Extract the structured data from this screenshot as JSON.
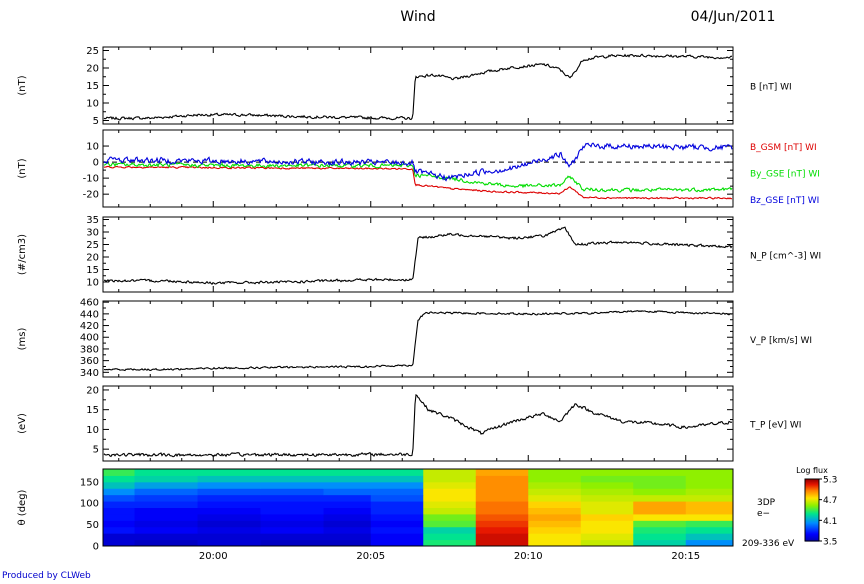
{
  "header": {
    "mission": "Wind",
    "date": "04/Jun/2011"
  },
  "footer": {
    "credit": "Produced by CLWeb"
  },
  "x_axis": {
    "type": "time",
    "range": [
      "19:56:30",
      "20:16:30"
    ],
    "ticks": [
      {
        "value": "20:00",
        "label": "20:00"
      },
      {
        "value": "20:05",
        "label": "20:05"
      },
      {
        "value": "20:10",
        "label": "20:10"
      },
      {
        "value": "20:15",
        "label": "20:15"
      }
    ]
  },
  "chart_data": [
    {
      "type": "line",
      "ylabel": "(nT)",
      "ylim": [
        4,
        26
      ],
      "yticks": [
        5,
        10,
        15,
        20,
        25
      ],
      "series": [
        {
          "name": "B [nT] WI",
          "color": "#000000",
          "noise": 0.35,
          "points": [
            [
              "19:56:30",
              5.6
            ],
            [
              "19:58:00",
              5.7
            ],
            [
              "19:59:30",
              6.6
            ],
            [
              "20:01:00",
              6.6
            ],
            [
              "20:02:30",
              6.2
            ],
            [
              "20:04:00",
              5.9
            ],
            [
              "20:05:30",
              5.7
            ],
            [
              "20:06:20",
              5.6
            ],
            [
              "20:06:25",
              17.5
            ],
            [
              "20:07:00",
              18.0
            ],
            [
              "20:07:40",
              16.8
            ],
            [
              "20:08:30",
              18.6
            ],
            [
              "20:09:30",
              20.2
            ],
            [
              "20:10:30",
              21.0
            ],
            [
              "20:11:00",
              19.6
            ],
            [
              "20:11:20",
              17.0
            ],
            [
              "20:11:45",
              22.5
            ],
            [
              "20:12:30",
              23.4
            ],
            [
              "20:13:30",
              23.6
            ],
            [
              "20:14:30",
              23.4
            ],
            [
              "20:15:30",
              23.2
            ],
            [
              "20:16:30",
              23.0
            ]
          ]
        }
      ]
    },
    {
      "type": "line",
      "ylabel": "(nT)",
      "ylim": [
        -28,
        20
      ],
      "yticks": [
        -20,
        -10,
        0,
        10
      ],
      "zero_line": "dashed",
      "series": [
        {
          "name": "B_GSM [nT] WI",
          "color": "#dd0000",
          "noise": 0.45,
          "points": [
            [
              "19:56:30",
              -3.0
            ],
            [
              "20:01:00",
              -3.6
            ],
            [
              "20:06:20",
              -4.2
            ],
            [
              "20:06:25",
              -14.0
            ],
            [
              "20:07:30",
              -16.5
            ],
            [
              "20:09:00",
              -18.5
            ],
            [
              "20:11:00",
              -19.5
            ],
            [
              "20:11:20",
              -15.5
            ],
            [
              "20:11:45",
              -22.0
            ],
            [
              "20:13:30",
              -22.5
            ],
            [
              "20:16:30",
              -22.5
            ]
          ]
        },
        {
          "name": "By_GSE [nT] WI",
          "color": "#00dd00",
          "noise": 1.0,
          "points": [
            [
              "19:56:30",
              -1.5
            ],
            [
              "20:01:00",
              -2.2
            ],
            [
              "20:06:20",
              -2.2
            ],
            [
              "20:06:25",
              -8.0
            ],
            [
              "20:07:30",
              -10.0
            ],
            [
              "20:08:30",
              -13.0
            ],
            [
              "20:09:30",
              -15.0
            ],
            [
              "20:11:00",
              -14.5
            ],
            [
              "20:11:20",
              -9.0
            ],
            [
              "20:11:45",
              -17.0
            ],
            [
              "20:13:30",
              -17.5
            ],
            [
              "20:16:30",
              -17.0
            ]
          ]
        },
        {
          "name": "Bz_GSE [nT] WI",
          "color": "#0000dd",
          "noise": 1.6,
          "points": [
            [
              "19:56:30",
              1.5
            ],
            [
              "20:01:00",
              0.5
            ],
            [
              "20:06:20",
              -0.5
            ],
            [
              "20:06:25",
              -6.0
            ],
            [
              "20:07:30",
              -10.0
            ],
            [
              "20:08:30",
              -6.0
            ],
            [
              "20:09:30",
              -4.0
            ],
            [
              "20:10:30",
              2.0
            ],
            [
              "20:11:00",
              5.0
            ],
            [
              "20:11:20",
              -3.0
            ],
            [
              "20:11:45",
              10.0
            ],
            [
              "20:13:00",
              10.0
            ],
            [
              "20:14:30",
              9.5
            ],
            [
              "20:16:30",
              9.0
            ]
          ]
        }
      ]
    },
    {
      "type": "line",
      "ylabel": "(#/cm3)",
      "ylim": [
        6,
        36
      ],
      "yticks": [
        10,
        15,
        20,
        25,
        30,
        35
      ],
      "series": [
        {
          "name": "N_P [cm^-3] WI",
          "color": "#000000",
          "noise": 0.45,
          "points": [
            [
              "19:56:30",
              10.5
            ],
            [
              "19:58:30",
              10.5
            ],
            [
              "20:00:00",
              9.6
            ],
            [
              "20:02:30",
              10.0
            ],
            [
              "20:04:30",
              10.8
            ],
            [
              "20:06:20",
              11.0
            ],
            [
              "20:06:30",
              27.5
            ],
            [
              "20:07:30",
              29.0
            ],
            [
              "20:08:30",
              28.5
            ],
            [
              "20:09:30",
              27.5
            ],
            [
              "20:10:30",
              28.5
            ],
            [
              "20:11:10",
              31.5
            ],
            [
              "20:11:30",
              25.0
            ],
            [
              "20:13:00",
              26.0
            ],
            [
              "20:14:30",
              25.0
            ],
            [
              "20:16:30",
              24.0
            ]
          ]
        }
      ]
    },
    {
      "type": "line",
      "ylabel": "(ms)",
      "ylim": [
        332,
        462
      ],
      "yticks": [
        340,
        360,
        380,
        400,
        420,
        440,
        460
      ],
      "series": [
        {
          "name": "V_P [km/s] WI",
          "color": "#000000",
          "noise": 1.4,
          "points": [
            [
              "19:56:30",
              345
            ],
            [
              "19:58:30",
              345
            ],
            [
              "20:00:00",
              347
            ],
            [
              "20:03:00",
              349
            ],
            [
              "20:05:00",
              350
            ],
            [
              "20:06:00",
              352
            ],
            [
              "20:06:20",
              352
            ],
            [
              "20:06:30",
              430
            ],
            [
              "20:06:45",
              442
            ],
            [
              "20:08:30",
              441
            ],
            [
              "20:10:00",
              440
            ],
            [
              "20:12:00",
              441
            ],
            [
              "20:13:30",
              445
            ],
            [
              "20:15:00",
              442
            ],
            [
              "20:16:30",
              440
            ]
          ]
        }
      ]
    },
    {
      "type": "line",
      "ylabel": "(eV)",
      "ylim": [
        2,
        21
      ],
      "yticks": [
        5,
        10,
        15,
        20
      ],
      "series": [
        {
          "name": "T_P [eV] WI",
          "color": "#000000",
          "noise": 0.35,
          "points": [
            [
              "19:56:30",
              3.6
            ],
            [
              "19:59:00",
              3.5
            ],
            [
              "20:01:00",
              3.6
            ],
            [
              "20:03:00",
              3.6
            ],
            [
              "20:06:20",
              3.7
            ],
            [
              "20:06:25",
              19.0
            ],
            [
              "20:06:50",
              15.0
            ],
            [
              "20:07:30",
              13.0
            ],
            [
              "20:08:30",
              9.0
            ],
            [
              "20:09:30",
              12.0
            ],
            [
              "20:10:30",
              14.0
            ],
            [
              "20:11:00",
              12.0
            ],
            [
              "20:11:30",
              16.5
            ],
            [
              "20:12:00",
              14.5
            ],
            [
              "20:13:00",
              12.0
            ],
            [
              "20:14:00",
              11.5
            ],
            [
              "20:15:00",
              10.5
            ],
            [
              "20:16:30",
              12.0
            ]
          ]
        }
      ]
    },
    {
      "type": "heatmap",
      "ylabel": "θ (deg)",
      "ylim": [
        0,
        180
      ],
      "yticks": [
        0,
        50,
        100,
        150
      ],
      "instrument": "3DP",
      "particle": "e−",
      "energy_band": "209-336 eV",
      "colorbar": {
        "title": "Log flux",
        "range": [
          3.5,
          5.3
        ],
        "ticks": [
          3.5,
          4.1,
          4.7,
          5.3
        ]
      },
      "time_bins": [
        "19:56:30",
        "19:57:30",
        "19:59:30",
        "20:01:30",
        "20:03:30",
        "20:05:00",
        "20:06:40",
        "20:08:20",
        "20:10:00",
        "20:11:40",
        "20:13:20",
        "20:15:00",
        "20:16:30"
      ],
      "angle_bins": [
        0,
        15,
        30,
        45,
        60,
        75,
        90,
        105,
        120,
        135,
        150,
        165,
        180
      ],
      "values": [
        [
          3.6,
          3.55,
          3.6,
          3.55,
          3.55,
          3.7,
          4.35,
          5.2,
          4.75,
          4.65,
          4.25,
          4.05
        ],
        [
          3.6,
          3.6,
          3.6,
          3.6,
          3.6,
          3.7,
          4.3,
          5.2,
          4.75,
          4.7,
          4.3,
          4.2
        ],
        [
          3.75,
          3.7,
          3.65,
          3.7,
          3.65,
          3.75,
          4.25,
          5.15,
          4.8,
          4.75,
          4.35,
          4.3
        ],
        [
          3.7,
          3.65,
          3.6,
          3.65,
          3.6,
          3.7,
          4.45,
          5.1,
          4.85,
          4.75,
          4.45,
          4.4
        ],
        [
          3.75,
          3.7,
          3.65,
          3.7,
          3.65,
          3.75,
          4.5,
          5.05,
          4.9,
          4.8,
          4.75,
          4.75
        ],
        [
          3.75,
          3.7,
          3.7,
          3.75,
          3.7,
          3.8,
          4.65,
          5.0,
          4.85,
          4.7,
          4.9,
          4.85
        ],
        [
          3.8,
          3.8,
          3.75,
          3.75,
          3.75,
          3.8,
          4.7,
          5.0,
          4.8,
          4.7,
          4.9,
          4.85
        ],
        [
          3.9,
          3.85,
          3.8,
          3.8,
          3.8,
          3.9,
          4.75,
          4.95,
          4.7,
          4.65,
          4.65,
          4.65
        ],
        [
          4.05,
          3.95,
          3.9,
          3.9,
          3.95,
          3.95,
          4.75,
          4.95,
          4.65,
          4.6,
          4.55,
          4.6
        ],
        [
          4.2,
          4.1,
          4.05,
          4.05,
          4.05,
          4.05,
          4.7,
          4.95,
          4.6,
          4.55,
          4.5,
          4.55
        ],
        [
          4.3,
          4.25,
          4.2,
          4.2,
          4.2,
          4.2,
          4.65,
          4.95,
          4.55,
          4.5,
          4.5,
          4.55
        ],
        [
          4.4,
          4.3,
          4.3,
          4.3,
          4.3,
          4.3,
          4.65,
          4.9,
          4.55,
          4.55,
          4.55,
          4.55
        ]
      ]
    }
  ]
}
